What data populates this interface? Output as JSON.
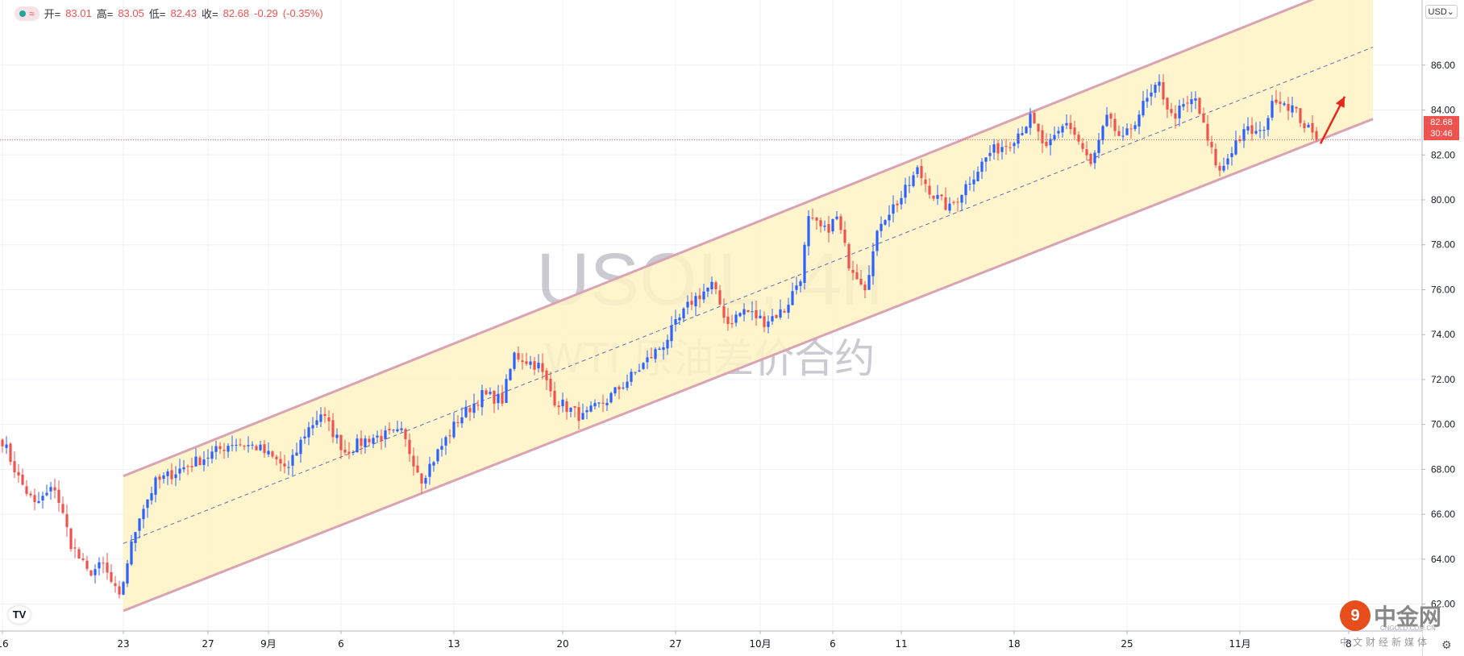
{
  "header": {
    "ohlc": {
      "open_label": "开=",
      "open": "83.01",
      "high_label": "高=",
      "high": "83.05",
      "low_label": "低=",
      "low": "82.43",
      "close_label": "收=",
      "close": "82.68",
      "change": "-0.29",
      "change_pct": "(-0.35%)"
    },
    "currency": "USD"
  },
  "watermark": {
    "symbol": "USOIL, 4h",
    "description": "WTI 原油差价合约"
  },
  "price_tag": {
    "price": "82.68",
    "countdown": "30:46"
  },
  "brand": {
    "logo_text": "9",
    "name": "中金网",
    "url": "CNGOLD.COM.CN",
    "sub": "中文财经新媒体"
  },
  "tv_logo": "TV",
  "colors": {
    "up": "#2962ff",
    "down": "#ef5350",
    "channel_fill": "#fff3c4",
    "channel_line": "#d9a3b3",
    "price_line": "#ef5350"
  },
  "chart_data": {
    "type": "candlestick",
    "timeframe": "4h",
    "ylim": [
      60.8,
      88.9
    ],
    "y_ticks": [
      62,
      64,
      66,
      68,
      70,
      72,
      74,
      76,
      78,
      80,
      82,
      84,
      86
    ],
    "y_tick_labels": [
      "62.00",
      "64.00",
      "66.00",
      "68.00",
      "70.00",
      "72.00",
      "74.00",
      "76.00",
      "78.00",
      "80.00",
      "82.00",
      "84.00",
      "86.00"
    ],
    "x_ticks": [
      {
        "label": "16",
        "bar": 0
      },
      {
        "label": "23",
        "bar": 30
      },
      {
        "label": "27",
        "bar": 51
      },
      {
        "label": "9月",
        "bar": 66
      },
      {
        "label": "6",
        "bar": 84
      },
      {
        "label": "13",
        "bar": 112
      },
      {
        "label": "20",
        "bar": 139
      },
      {
        "label": "27",
        "bar": 167
      },
      {
        "label": "10月",
        "bar": 188
      },
      {
        "label": "6",
        "bar": 206
      },
      {
        "label": "11",
        "bar": 223
      },
      {
        "label": "18",
        "bar": 251
      },
      {
        "label": "25",
        "bar": 279
      },
      {
        "label": "11月",
        "bar": 307
      },
      {
        "label": "8",
        "bar": 334
      }
    ],
    "last_price": 82.68,
    "anchors": [
      [
        0,
        69.3
      ],
      [
        4,
        67.6
      ],
      [
        8,
        66.4
      ],
      [
        13,
        67.2
      ],
      [
        17,
        64.7
      ],
      [
        21,
        63.4
      ],
      [
        25,
        63.7
      ],
      [
        29,
        62.2
      ],
      [
        31,
        63.9
      ],
      [
        34,
        66.0
      ],
      [
        38,
        67.4
      ],
      [
        44,
        68.0
      ],
      [
        51,
        68.6
      ],
      [
        57,
        69.2
      ],
      [
        63,
        69.0
      ],
      [
        71,
        68.0
      ],
      [
        75,
        69.6
      ],
      [
        79,
        70.5
      ],
      [
        85,
        68.8
      ],
      [
        91,
        69.4
      ],
      [
        99,
        69.6
      ],
      [
        104,
        67.6
      ],
      [
        113,
        70.2
      ],
      [
        119,
        71.3
      ],
      [
        124,
        71.1
      ],
      [
        127,
        73.1
      ],
      [
        133,
        72.6
      ],
      [
        137,
        71.1
      ],
      [
        144,
        70.3
      ],
      [
        150,
        71.1
      ],
      [
        157,
        72.3
      ],
      [
        164,
        73.6
      ],
      [
        171,
        75.5
      ],
      [
        176,
        76.2
      ],
      [
        180,
        74.5
      ],
      [
        184,
        75.1
      ],
      [
        189,
        74.6
      ],
      [
        194,
        75.1
      ],
      [
        198,
        76.6
      ],
      [
        200,
        79.1
      ],
      [
        204,
        78.6
      ],
      [
        207,
        79.2
      ],
      [
        210,
        77.2
      ],
      [
        214,
        76.2
      ],
      [
        218,
        79.1
      ],
      [
        223,
        80.1
      ],
      [
        227,
        81.3
      ],
      [
        231,
        80.2
      ],
      [
        235,
        79.6
      ],
      [
        240,
        80.9
      ],
      [
        245,
        82.1
      ],
      [
        250,
        82.6
      ],
      [
        255,
        83.6
      ],
      [
        259,
        82.2
      ],
      [
        264,
        83.5
      ],
      [
        267,
        82.6
      ],
      [
        270,
        81.5
      ],
      [
        274,
        83.6
      ],
      [
        278,
        82.6
      ],
      [
        283,
        84.2
      ],
      [
        287,
        85.1
      ],
      [
        290,
        83.7
      ],
      [
        296,
        84.5
      ],
      [
        299,
        82.6
      ],
      [
        302,
        81.2
      ],
      [
        306,
        82.6
      ],
      [
        309,
        83.1
      ],
      [
        312,
        82.9
      ],
      [
        316,
        84.6
      ],
      [
        320,
        84.1
      ],
      [
        324,
        83.1
      ],
      [
        326,
        82.68
      ]
    ],
    "channel": {
      "lower": [
        [
          30,
          61.7
        ],
        [
          340,
          83.6
        ]
      ],
      "upper": [
        [
          30,
          67.7
        ],
        [
          340,
          90.0
        ]
      ],
      "mid": [
        [
          30,
          64.7
        ],
        [
          340,
          86.8
        ]
      ]
    },
    "arrow": {
      "from": [
        327,
        82.5
      ],
      "to": [
        333,
        84.6
      ]
    }
  }
}
